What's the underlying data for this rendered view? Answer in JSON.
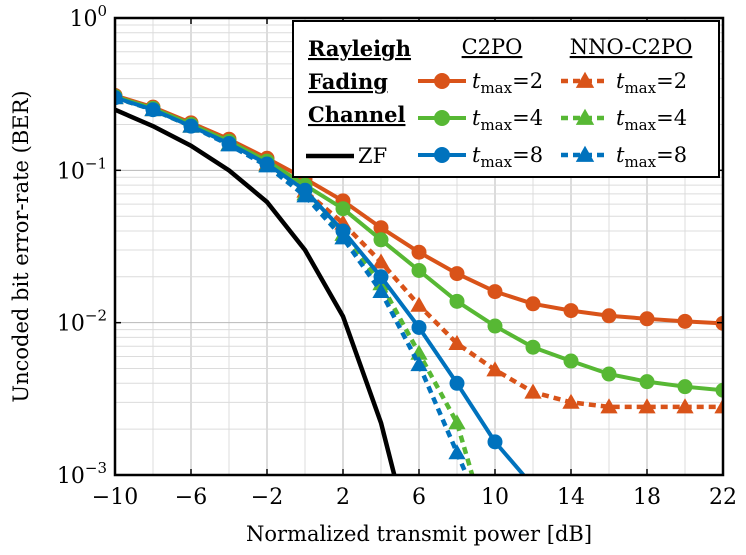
{
  "chart_data": {
    "type": "line",
    "xlabel": "Normalized transmit power [dB]",
    "ylabel": "Uncoded bit error-rate (BER)",
    "xlim": [
      -10,
      22
    ],
    "ylim": [
      0.001,
      1
    ],
    "yscale": "log",
    "grid": true,
    "legend_placement": "top-right",
    "x_ticks": [
      "−10",
      "−6",
      "−2",
      "2",
      "6",
      "10",
      "14",
      "18",
      "22"
    ],
    "x_tick_values": [
      -10,
      -6,
      -2,
      2,
      6,
      10,
      14,
      18,
      22
    ],
    "y_ticks": [
      {
        "base": "10",
        "exp": "0",
        "value": 1
      },
      {
        "base": "10",
        "exp": "−1",
        "value": 0.1
      },
      {
        "base": "10",
        "exp": "−2",
        "value": 0.01
      },
      {
        "base": "10",
        "exp": "−3",
        "value": 0.001
      }
    ],
    "legend": {
      "channel_title": [
        "Rayleigh",
        "Fading",
        "Channel"
      ],
      "group1": "C2PO",
      "group2": "NNO-C2PO",
      "zf": "ZF",
      "tmax_symbol": "t",
      "tmax_sub": "max",
      "tmax_values": [
        "=2",
        "=4",
        "=8"
      ]
    },
    "series": [
      {
        "name": "ZF",
        "color": "#000000",
        "marker": "none",
        "dash": false,
        "x": [
          -10,
          -8,
          -6,
          -4,
          -2,
          0,
          2,
          4,
          4.7
        ],
        "y": [
          0.25,
          0.195,
          0.145,
          0.1,
          0.062,
          0.03,
          0.011,
          0.0022,
          0.001
        ]
      },
      {
        "name": "C2PO tmax=2",
        "color": "#D95319",
        "marker": "circle",
        "dash": false,
        "x": [
          -10,
          -8,
          -6,
          -4,
          -2,
          0,
          2,
          4,
          6,
          8,
          10,
          12,
          14,
          16,
          18,
          20,
          22
        ],
        "y": [
          0.31,
          0.26,
          0.205,
          0.16,
          0.12,
          0.088,
          0.063,
          0.042,
          0.029,
          0.021,
          0.016,
          0.0133,
          0.012,
          0.0111,
          0.0106,
          0.0102,
          0.0099
        ]
      },
      {
        "name": "C2PO tmax=4",
        "color": "#57B834",
        "marker": "circle",
        "dash": false,
        "x": [
          -10,
          -8,
          -6,
          -4,
          -2,
          0,
          2,
          4,
          6,
          8,
          10,
          12,
          14,
          16,
          18,
          20,
          22
        ],
        "y": [
          0.305,
          0.255,
          0.2,
          0.155,
          0.115,
          0.08,
          0.056,
          0.035,
          0.022,
          0.0138,
          0.0095,
          0.0069,
          0.0056,
          0.0046,
          0.0041,
          0.0038,
          0.0036
        ]
      },
      {
        "name": "C2PO tmax=8",
        "color": "#0072BD",
        "marker": "circle",
        "dash": false,
        "x": [
          -10,
          -8,
          -6,
          -4,
          -2,
          0,
          2,
          4,
          6,
          8,
          10,
          11.5
        ],
        "y": [
          0.3,
          0.25,
          0.195,
          0.15,
          0.11,
          0.074,
          0.04,
          0.02,
          0.0093,
          0.004,
          0.00165,
          0.001
        ]
      },
      {
        "name": "NNO-C2PO tmax=2",
        "color": "#D95319",
        "marker": "triangle",
        "dash": true,
        "x": [
          -10,
          -8,
          -6,
          -4,
          -2,
          0,
          2,
          4,
          6,
          8,
          10,
          12,
          14,
          16,
          18,
          20,
          22
        ],
        "y": [
          0.3,
          0.25,
          0.195,
          0.148,
          0.11,
          0.073,
          0.045,
          0.025,
          0.013,
          0.0073,
          0.0049,
          0.0035,
          0.003,
          0.0028,
          0.0028,
          0.0028,
          0.0028
        ]
      },
      {
        "name": "NNO-C2PO tmax=4",
        "color": "#57B834",
        "marker": "triangle",
        "dash": true,
        "x": [
          -10,
          -8,
          -6,
          -4,
          -2,
          0,
          2,
          4,
          6,
          8,
          8.8
        ],
        "y": [
          0.3,
          0.25,
          0.195,
          0.148,
          0.108,
          0.07,
          0.038,
          0.018,
          0.0063,
          0.0022,
          0.001
        ]
      },
      {
        "name": "NNO-C2PO tmax=8",
        "color": "#0072BD",
        "marker": "triangle",
        "dash": true,
        "x": [
          -10,
          -8,
          -6,
          -4,
          -2,
          0,
          2,
          4,
          6,
          8,
          8.5
        ],
        "y": [
          0.3,
          0.25,
          0.195,
          0.147,
          0.107,
          0.068,
          0.036,
          0.016,
          0.0053,
          0.0014,
          0.001
        ]
      }
    ]
  }
}
